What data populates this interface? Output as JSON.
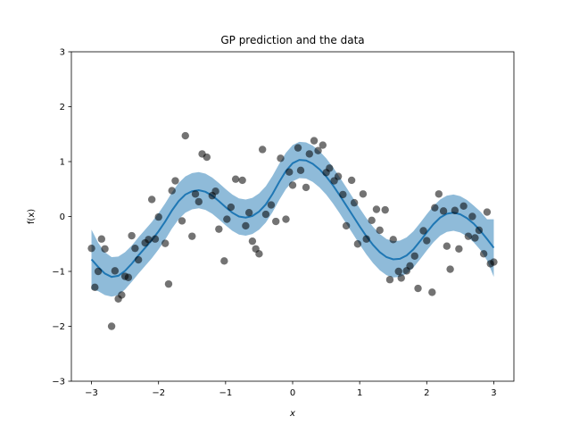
{
  "chart_data": {
    "type": "line",
    "title": "GP prediction and the data",
    "xlabel": "x",
    "ylabel": "f(x)",
    "xlim": [
      -3.3,
      3.3
    ],
    "ylim": [
      -3,
      3
    ],
    "xticks": [
      -3,
      -2,
      -1,
      0,
      1,
      2,
      3
    ],
    "xtick_labels": [
      "−3",
      "−2",
      "−1",
      "0",
      "1",
      "2",
      "3"
    ],
    "yticks": [
      -3,
      -2,
      -1,
      0,
      1,
      2,
      3
    ],
    "ytick_labels": [
      "−3",
      "−2",
      "−1",
      "0",
      "1",
      "2",
      "3"
    ],
    "grid": false,
    "colors": {
      "mean_line": "#1f77b4",
      "confidence_band": "#1f77b4",
      "data_points": "#000000"
    },
    "series": [
      {
        "kind": "mean",
        "x": [
          -3.0,
          -2.9,
          -2.8,
          -2.7,
          -2.6,
          -2.5,
          -2.4,
          -2.3,
          -2.2,
          -2.1,
          -2.0,
          -1.9,
          -1.8,
          -1.7,
          -1.6,
          -1.5,
          -1.4,
          -1.3,
          -1.2,
          -1.1,
          -1.0,
          -0.9,
          -0.8,
          -0.7,
          -0.6,
          -0.5,
          -0.4,
          -0.3,
          -0.2,
          -0.1,
          0.0,
          0.1,
          0.2,
          0.3,
          0.4,
          0.5,
          0.6,
          0.7,
          0.8,
          0.9,
          1.0,
          1.1,
          1.2,
          1.3,
          1.4,
          1.5,
          1.6,
          1.7,
          1.8,
          1.9,
          2.0,
          2.1,
          2.2,
          2.3,
          2.4,
          2.5,
          2.6,
          2.7,
          2.8,
          2.9,
          3.0
        ],
        "y": [
          -0.78,
          -0.92,
          -1.04,
          -1.1,
          -1.08,
          -0.99,
          -0.86,
          -0.71,
          -0.57,
          -0.43,
          -0.27,
          -0.09,
          0.11,
          0.28,
          0.4,
          0.46,
          0.48,
          0.45,
          0.38,
          0.28,
          0.17,
          0.07,
          0.0,
          -0.02,
          0.01,
          0.09,
          0.22,
          0.41,
          0.63,
          0.83,
          0.97,
          1.03,
          1.02,
          0.96,
          0.86,
          0.73,
          0.57,
          0.39,
          0.2,
          0.01,
          -0.18,
          -0.36,
          -0.52,
          -0.65,
          -0.74,
          -0.78,
          -0.77,
          -0.71,
          -0.6,
          -0.45,
          -0.29,
          -0.14,
          -0.02,
          0.05,
          0.07,
          0.04,
          -0.03,
          -0.13,
          -0.26,
          -0.41,
          -0.57
        ]
      },
      {
        "kind": "confidence_band",
        "x": [
          -3.0,
          -2.9,
          -2.8,
          -2.7,
          -2.6,
          -2.5,
          -2.4,
          -2.3,
          -2.2,
          -2.1,
          -2.0,
          -1.9,
          -1.8,
          -1.7,
          -1.6,
          -1.5,
          -1.4,
          -1.3,
          -1.2,
          -1.1,
          -1.0,
          -0.9,
          -0.8,
          -0.7,
          -0.6,
          -0.5,
          -0.4,
          -0.3,
          -0.2,
          -0.1,
          0.0,
          0.1,
          0.2,
          0.3,
          0.4,
          0.5,
          0.6,
          0.7,
          0.8,
          0.9,
          1.0,
          1.1,
          1.2,
          1.3,
          1.4,
          1.5,
          1.6,
          1.7,
          1.8,
          1.9,
          2.0,
          2.1,
          2.2,
          2.3,
          2.4,
          2.5,
          2.6,
          2.7,
          2.8,
          2.9,
          3.0
        ],
        "lower": [
          -1.33,
          -1.36,
          -1.43,
          -1.46,
          -1.43,
          -1.33,
          -1.19,
          -1.04,
          -0.9,
          -0.76,
          -0.6,
          -0.42,
          -0.22,
          -0.05,
          0.07,
          0.13,
          0.15,
          0.12,
          0.05,
          -0.05,
          -0.16,
          -0.26,
          -0.33,
          -0.35,
          -0.32,
          -0.24,
          -0.11,
          0.08,
          0.3,
          0.5,
          0.64,
          0.7,
          0.69,
          0.63,
          0.53,
          0.4,
          0.24,
          0.06,
          -0.13,
          -0.32,
          -0.51,
          -0.69,
          -0.85,
          -0.98,
          -1.07,
          -1.11,
          -1.1,
          -1.04,
          -0.93,
          -0.78,
          -0.62,
          -0.47,
          -0.35,
          -0.28,
          -0.26,
          -0.29,
          -0.36,
          -0.47,
          -0.61,
          -0.8,
          -1.1
        ],
        "upper": [
          -0.24,
          -0.48,
          -0.65,
          -0.74,
          -0.73,
          -0.65,
          -0.53,
          -0.38,
          -0.24,
          -0.1,
          0.06,
          0.24,
          0.44,
          0.61,
          0.73,
          0.79,
          0.81,
          0.78,
          0.71,
          0.61,
          0.5,
          0.4,
          0.33,
          0.31,
          0.34,
          0.42,
          0.55,
          0.74,
          0.96,
          1.16,
          1.3,
          1.36,
          1.35,
          1.29,
          1.19,
          1.06,
          0.9,
          0.72,
          0.53,
          0.34,
          0.15,
          -0.03,
          -0.19,
          -0.32,
          -0.41,
          -0.45,
          -0.44,
          -0.38,
          -0.27,
          -0.12,
          0.04,
          0.19,
          0.31,
          0.38,
          0.4,
          0.37,
          0.3,
          0.2,
          0.09,
          -0.05,
          -0.05
        ]
      },
      {
        "kind": "data",
        "points": [
          [
            -3.0,
            -0.58
          ],
          [
            -2.95,
            -1.29
          ],
          [
            -2.9,
            -1.0
          ],
          [
            -2.85,
            -0.41
          ],
          [
            -2.8,
            -0.59
          ],
          [
            -2.7,
            -2.0
          ],
          [
            -2.65,
            -0.99
          ],
          [
            -2.6,
            -1.5
          ],
          [
            -2.55,
            -1.43
          ],
          [
            -2.5,
            -1.09
          ],
          [
            -2.45,
            -1.11
          ],
          [
            -2.4,
            -0.35
          ],
          [
            -2.35,
            -0.58
          ],
          [
            -2.3,
            -0.79
          ],
          [
            -2.2,
            -0.48
          ],
          [
            -2.15,
            -0.42
          ],
          [
            -2.1,
            0.31
          ],
          [
            -2.05,
            -0.41
          ],
          [
            -2.0,
            -0.01
          ],
          [
            -1.9,
            -0.49
          ],
          [
            -1.85,
            -1.23
          ],
          [
            -1.8,
            0.47
          ],
          [
            -1.75,
            0.65
          ],
          [
            -1.65,
            -0.08
          ],
          [
            -1.6,
            1.47
          ],
          [
            -1.5,
            -0.36
          ],
          [
            -1.45,
            0.41
          ],
          [
            -1.4,
            0.27
          ],
          [
            -1.35,
            1.14
          ],
          [
            -1.28,
            1.08
          ],
          [
            -1.2,
            0.38
          ],
          [
            -1.15,
            0.46
          ],
          [
            -1.1,
            -0.23
          ],
          [
            -1.02,
            -0.81
          ],
          [
            -0.98,
            -0.05
          ],
          [
            -0.92,
            0.17
          ],
          [
            -0.85,
            0.68
          ],
          [
            -0.75,
            0.66
          ],
          [
            -0.7,
            -0.17
          ],
          [
            -0.65,
            0.07
          ],
          [
            -0.6,
            -0.45
          ],
          [
            -0.55,
            -0.59
          ],
          [
            -0.5,
            -0.68
          ],
          [
            -0.45,
            1.22
          ],
          [
            -0.4,
            0.04
          ],
          [
            -0.32,
            0.21
          ],
          [
            -0.25,
            -0.09
          ],
          [
            -0.18,
            1.06
          ],
          [
            -0.1,
            -0.05
          ],
          [
            -0.05,
            0.81
          ],
          [
            0.0,
            0.57
          ],
          [
            0.08,
            1.25
          ],
          [
            0.12,
            0.84
          ],
          [
            0.2,
            0.53
          ],
          [
            0.25,
            1.14
          ],
          [
            0.32,
            1.38
          ],
          [
            0.38,
            1.2
          ],
          [
            0.45,
            1.3
          ],
          [
            0.5,
            0.8
          ],
          [
            0.55,
            0.88
          ],
          [
            0.62,
            0.65
          ],
          [
            0.68,
            0.73
          ],
          [
            0.75,
            0.4
          ],
          [
            0.8,
            -0.17
          ],
          [
            0.88,
            0.66
          ],
          [
            0.92,
            0.25
          ],
          [
            0.97,
            -0.5
          ],
          [
            1.05,
            0.41
          ],
          [
            1.1,
            -0.41
          ],
          [
            1.18,
            -0.07
          ],
          [
            1.25,
            0.13
          ],
          [
            1.3,
            -0.25
          ],
          [
            1.38,
            0.12
          ],
          [
            1.45,
            -1.15
          ],
          [
            1.5,
            -0.42
          ],
          [
            1.58,
            -1.0
          ],
          [
            1.62,
            -1.12
          ],
          [
            1.7,
            -0.99
          ],
          [
            1.75,
            -0.9
          ],
          [
            1.82,
            -0.72
          ],
          [
            1.87,
            -1.31
          ],
          [
            1.95,
            -0.26
          ],
          [
            2.0,
            -0.44
          ],
          [
            2.08,
            -1.38
          ],
          [
            2.12,
            0.16
          ],
          [
            2.18,
            0.41
          ],
          [
            2.25,
            0.1
          ],
          [
            2.3,
            -0.54
          ],
          [
            2.35,
            -0.96
          ],
          [
            2.42,
            0.11
          ],
          [
            2.48,
            -0.59
          ],
          [
            2.55,
            0.19
          ],
          [
            2.62,
            -0.36
          ],
          [
            2.68,
            0.0
          ],
          [
            2.72,
            -0.39
          ],
          [
            2.78,
            -0.25
          ],
          [
            2.85,
            -0.68
          ],
          [
            2.9,
            0.08
          ],
          [
            2.95,
            -0.86
          ],
          [
            3.0,
            -0.83
          ]
        ]
      }
    ]
  }
}
